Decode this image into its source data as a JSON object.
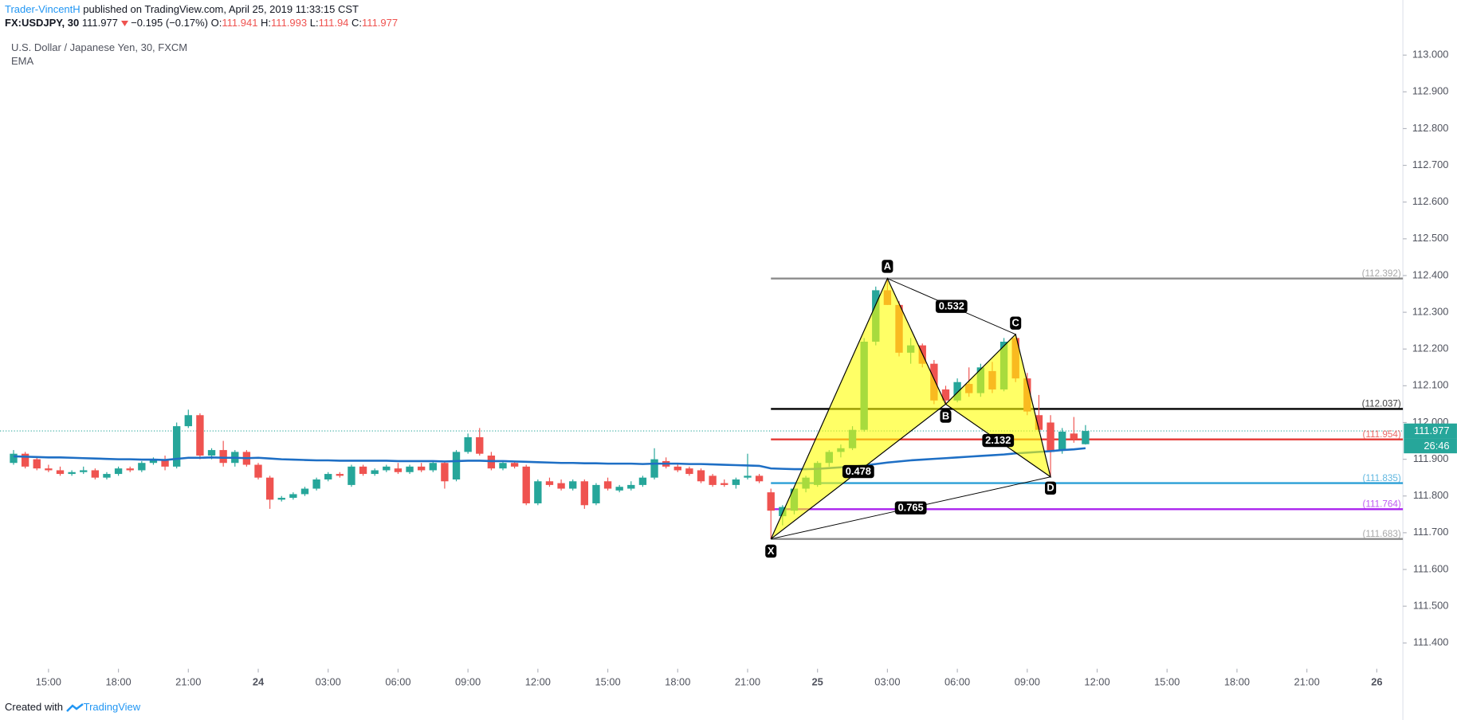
{
  "header": {
    "author": "Trader-VincentH",
    "published": "published on TradingView.com, April 25, 2019 11:33:15 CST",
    "symbol": "FX:USDJPY, 30",
    "change": "−0.195 (−0.17%)",
    "ohlc_labels": [
      "O:",
      "H:",
      "L:",
      "C:"
    ],
    "instrument": "U.S. Dollar / Japanese Yen, 30, FXCM",
    "indicator": "EMA",
    "countdown": "26:46"
  },
  "footer": {
    "created": "Created with",
    "brand": "TradingView"
  },
  "chart_data": {
    "type": "candlestick",
    "up_color": "#26a69a",
    "down_color": "#ef5350",
    "candles": [
      [
        111.89,
        111.925,
        111.885,
        111.915
      ],
      [
        111.915,
        111.92,
        111.875,
        111.88
      ],
      [
        111.9,
        111.905,
        111.87,
        111.875
      ],
      [
        111.875,
        111.885,
        111.865,
        111.87
      ],
      [
        111.87,
        111.88,
        111.855,
        111.86
      ],
      [
        111.86,
        111.87,
        111.855,
        111.865
      ],
      [
        111.865,
        111.88,
        111.86,
        111.87
      ],
      [
        111.87,
        111.875,
        111.845,
        111.85
      ],
      [
        111.85,
        111.865,
        111.845,
        111.86
      ],
      [
        111.86,
        111.88,
        111.855,
        111.875
      ],
      [
        111.875,
        111.88,
        111.865,
        111.87
      ],
      [
        111.87,
        111.895,
        111.865,
        111.89
      ],
      [
        111.89,
        111.905,
        111.885,
        111.9
      ],
      [
        111.9,
        111.91,
        111.87,
        111.88
      ],
      [
        111.88,
        112.0,
        111.875,
        111.99
      ],
      [
        111.99,
        112.035,
        111.985,
        112.02
      ],
      [
        112.02,
        112.025,
        111.9,
        111.91
      ],
      [
        111.91,
        111.93,
        111.9,
        111.925
      ],
      [
        111.925,
        111.95,
        111.88,
        111.89
      ],
      [
        111.89,
        111.925,
        111.88,
        111.92
      ],
      [
        111.92,
        111.925,
        111.88,
        111.885
      ],
      [
        111.885,
        111.89,
        111.845,
        111.85
      ],
      [
        111.85,
        111.855,
        111.765,
        111.79
      ],
      [
        111.79,
        111.8,
        111.785,
        111.795
      ],
      [
        111.795,
        111.81,
        111.79,
        111.805
      ],
      [
        111.805,
        111.825,
        111.8,
        111.82
      ],
      [
        111.82,
        111.85,
        111.815,
        111.845
      ],
      [
        111.845,
        111.865,
        111.84,
        111.86
      ],
      [
        111.86,
        111.865,
        111.85,
        111.855
      ],
      [
        111.83,
        111.885,
        111.825,
        111.88
      ],
      [
        111.88,
        111.885,
        111.855,
        111.86
      ],
      [
        111.86,
        111.875,
        111.855,
        111.87
      ],
      [
        111.87,
        111.885,
        111.865,
        111.88
      ],
      [
        111.875,
        111.89,
        111.86,
        111.865
      ],
      [
        111.865,
        111.885,
        111.86,
        111.88
      ],
      [
        111.88,
        111.89,
        111.865,
        111.87
      ],
      [
        111.87,
        111.895,
        111.865,
        111.89
      ],
      [
        111.89,
        111.895,
        111.82,
        111.84
      ],
      [
        111.845,
        111.925,
        111.84,
        111.92
      ],
      [
        111.92,
        111.97,
        111.915,
        111.96
      ],
      [
        111.96,
        111.985,
        111.91,
        111.915
      ],
      [
        111.91,
        111.92,
        111.87,
        111.875
      ],
      [
        111.875,
        111.895,
        111.87,
        111.89
      ],
      [
        111.89,
        111.895,
        111.875,
        111.88
      ],
      [
        111.88,
        111.885,
        111.775,
        111.78
      ],
      [
        111.78,
        111.845,
        111.775,
        111.84
      ],
      [
        111.84,
        111.85,
        111.825,
        111.83
      ],
      [
        111.835,
        111.845,
        111.815,
        111.82
      ],
      [
        111.82,
        111.845,
        111.815,
        111.84
      ],
      [
        111.84,
        111.845,
        111.765,
        111.775
      ],
      [
        111.78,
        111.835,
        111.775,
        111.83
      ],
      [
        111.84,
        111.85,
        111.815,
        111.82
      ],
      [
        111.815,
        111.83,
        111.81,
        111.825
      ],
      [
        111.82,
        111.84,
        111.815,
        111.83
      ],
      [
        111.83,
        111.855,
        111.825,
        111.85
      ],
      [
        111.85,
        111.93,
        111.845,
        111.9
      ],
      [
        111.895,
        111.905,
        111.875,
        111.88
      ],
      [
        111.88,
        111.89,
        111.865,
        111.87
      ],
      [
        111.875,
        111.88,
        111.855,
        111.86
      ],
      [
        111.87,
        111.875,
        111.835,
        111.84
      ],
      [
        111.855,
        111.86,
        111.825,
        111.83
      ],
      [
        111.835,
        111.845,
        111.825,
        111.83
      ],
      [
        111.83,
        111.85,
        111.82,
        111.845
      ],
      [
        111.85,
        111.915,
        111.845,
        111.855
      ],
      [
        111.855,
        111.86,
        111.835,
        111.84
      ],
      [
        111.81,
        111.82,
        111.683,
        111.76
      ],
      [
        111.745,
        111.775,
        111.72,
        111.77
      ],
      [
        111.76,
        111.825,
        111.75,
        111.82
      ],
      [
        111.82,
        111.855,
        111.81,
        111.85
      ],
      [
        111.83,
        111.895,
        111.825,
        111.89
      ],
      [
        111.89,
        111.925,
        111.88,
        111.92
      ],
      [
        111.92,
        111.94,
        111.905,
        111.93
      ],
      [
        111.93,
        111.99,
        111.925,
        111.98
      ],
      [
        111.98,
        112.23,
        111.975,
        112.22
      ],
      [
        112.22,
        112.37,
        112.21,
        112.36
      ],
      [
        112.36,
        112.392,
        112.32,
        112.32
      ],
      [
        112.32,
        112.33,
        112.18,
        112.19
      ],
      [
        112.19,
        112.23,
        112.16,
        112.21
      ],
      [
        112.21,
        112.215,
        112.15,
        112.16
      ],
      [
        112.16,
        112.17,
        112.05,
        112.06
      ],
      [
        112.09,
        112.1,
        112.05,
        112.06
      ],
      [
        112.06,
        112.12,
        112.055,
        112.11
      ],
      [
        112.105,
        112.15,
        112.07,
        112.08
      ],
      [
        112.08,
        112.16,
        112.07,
        112.15
      ],
      [
        112.14,
        112.165,
        112.08,
        112.09
      ],
      [
        112.09,
        112.23,
        112.085,
        112.22
      ],
      [
        112.23,
        112.24,
        112.11,
        112.12
      ],
      [
        112.12,
        112.135,
        112.02,
        112.03
      ],
      [
        112.02,
        112.075,
        111.975,
        111.98
      ],
      [
        112.0,
        112.02,
        111.852,
        111.92
      ],
      [
        111.925,
        111.985,
        111.915,
        111.975
      ],
      [
        111.97,
        112.015,
        111.945,
        111.955
      ],
      [
        111.941,
        111.993,
        111.94,
        111.977
      ]
    ],
    "ema": {
      "name": "EMA",
      "color": "#1e6fc5",
      "values": [
        111.908,
        111.907,
        111.906,
        111.905,
        111.905,
        111.904,
        111.903,
        111.902,
        111.901,
        111.9,
        111.9,
        111.899,
        111.899,
        111.898,
        111.901,
        111.904,
        111.904,
        111.905,
        111.904,
        111.904,
        111.903,
        111.904,
        111.902,
        111.9,
        111.899,
        111.898,
        111.897,
        111.897,
        111.896,
        111.896,
        111.896,
        111.896,
        111.896,
        111.895,
        111.895,
        111.895,
        111.895,
        111.894,
        111.895,
        111.896,
        111.896,
        111.895,
        111.895,
        111.894,
        111.893,
        111.892,
        111.891,
        111.89,
        111.89,
        111.889,
        111.889,
        111.888,
        111.888,
        111.888,
        111.887,
        111.888,
        111.888,
        111.888,
        111.887,
        111.887,
        111.886,
        111.885,
        111.884,
        111.883,
        111.882,
        111.875,
        111.874,
        111.873,
        111.873,
        111.874,
        111.876,
        111.878,
        111.88,
        111.883,
        111.887,
        111.891,
        111.894,
        111.897,
        111.899,
        111.901,
        111.903,
        111.905,
        111.907,
        111.909,
        111.911,
        111.913,
        111.916,
        111.918,
        111.92,
        111.922,
        111.925,
        111.927,
        111.93
      ]
    },
    "current_price_color": "#26a69a",
    "xlim": [
      -1.16,
      119.24
    ],
    "xticks": [
      {
        "value": 3,
        "label": "15:00"
      },
      {
        "value": 9,
        "label": "18:00"
      },
      {
        "value": 15,
        "label": "21:00"
      },
      {
        "value": 21,
        "label": "24"
      },
      {
        "value": 27,
        "label": "03:00"
      },
      {
        "value": 33,
        "label": "06:00"
      },
      {
        "value": 39,
        "label": "09:00"
      },
      {
        "value": 45,
        "label": "12:00"
      },
      {
        "value": 51,
        "label": "15:00"
      },
      {
        "value": 57,
        "label": "18:00"
      },
      {
        "value": 63,
        "label": "21:00"
      },
      {
        "value": 69,
        "label": "25"
      },
      {
        "value": 75,
        "label": "03:00"
      },
      {
        "value": 81,
        "label": "06:00"
      },
      {
        "value": 87,
        "label": "09:00"
      },
      {
        "value": 93,
        "label": "12:00"
      },
      {
        "value": 99,
        "label": "15:00"
      },
      {
        "value": 105,
        "label": "18:00"
      },
      {
        "value": 111,
        "label": "21:00"
      },
      {
        "value": 117,
        "label": "26"
      }
    ],
    "ylim": [
      111.35,
      113.15
    ],
    "yticks": [
      {
        "value": 111.4,
        "label": "111.400"
      },
      {
        "value": 111.5,
        "label": "111.500"
      },
      {
        "value": 111.6,
        "label": "111.600"
      },
      {
        "value": 111.7,
        "label": "111.700"
      },
      {
        "value": 111.8,
        "label": "111.800"
      },
      {
        "value": 111.9,
        "label": "111.900"
      },
      {
        "value": 112.0,
        "label": "112.000"
      },
      {
        "value": 112.1,
        "label": "112.100"
      },
      {
        "value": 112.2,
        "label": "112.200"
      },
      {
        "value": 112.3,
        "label": "112.300"
      },
      {
        "value": 112.4,
        "label": "112.400"
      },
      {
        "value": 112.5,
        "label": "112.500"
      },
      {
        "value": 112.6,
        "label": "112.600"
      },
      {
        "value": 112.7,
        "label": "112.700"
      },
      {
        "value": 112.8,
        "label": "112.800"
      },
      {
        "value": 112.9,
        "label": "112.900"
      },
      {
        "value": 113.0,
        "label": "113.000"
      }
    ],
    "levels": [
      {
        "value": 112.392,
        "label": "(112.392)",
        "color": "#8c8c8c"
      },
      {
        "value": 112.037,
        "label": "(112.037)",
        "color": "#000000"
      },
      {
        "value": 111.954,
        "label": "(111.954)",
        "color": "#e53935"
      },
      {
        "value": 111.835,
        "label": "(111.835)",
        "color": "#2a9fd6"
      },
      {
        "value": 111.764,
        "label": "(111.764)",
        "color": "#aa22ee"
      },
      {
        "value": 111.683,
        "label": "(111.683)",
        "color": "#8c8c8c"
      }
    ],
    "levels_start": 65,
    "pattern": {
      "fill": "#ffff00",
      "points": [
        {
          "label": "X",
          "x": 65,
          "price": 111.683
        },
        {
          "label": "A",
          "x": 75,
          "price": 112.392
        },
        {
          "label": "B",
          "x": 80,
          "price": 112.05
        },
        {
          "label": "C",
          "x": 86,
          "price": 112.24
        },
        {
          "label": "D",
          "x": 89,
          "price": 111.852
        }
      ],
      "ratios": [
        0.532,
        0.478,
        2.132,
        0.765
      ]
    }
  }
}
